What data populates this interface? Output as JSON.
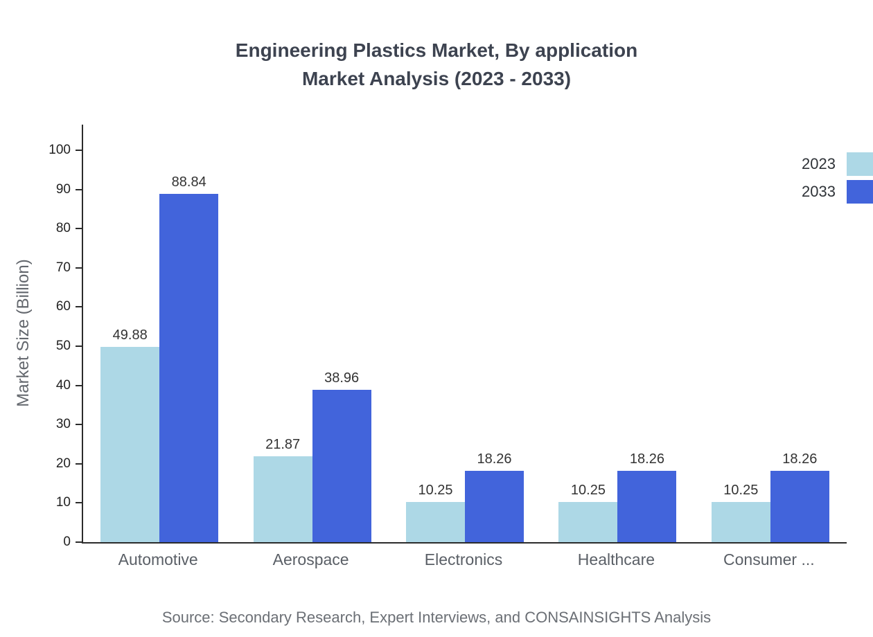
{
  "title": {
    "line1": "Engineering Plastics Market, By application",
    "line2": "Market Analysis (2023 - 2033)"
  },
  "chart_data": {
    "type": "bar",
    "categories": [
      "Automotive",
      "Aerospace",
      "Electronics",
      "Healthcare",
      "Consumer ..."
    ],
    "series": [
      {
        "name": "2023",
        "color": "#add8e6",
        "values": [
          49.88,
          21.87,
          10.25,
          10.25,
          10.25
        ]
      },
      {
        "name": "2033",
        "color": "#4264db",
        "values": [
          88.84,
          38.96,
          18.26,
          18.26,
          18.26
        ]
      }
    ],
    "title": "Engineering Plastics Market, By application Market Analysis (2023 - 2033)",
    "xlabel": "",
    "ylabel": "Market Size (Billion)",
    "ylim": [
      0,
      100
    ],
    "yticks": [
      0,
      10,
      20,
      30,
      40,
      50,
      60,
      70,
      80,
      90,
      100
    ],
    "grid": false,
    "legend_position": "top-right",
    "value_label_decimals": 2
  },
  "footer": {
    "source": "Source: Secondary Research, Expert Interviews, and CONSAINSIGHTS Analysis"
  }
}
